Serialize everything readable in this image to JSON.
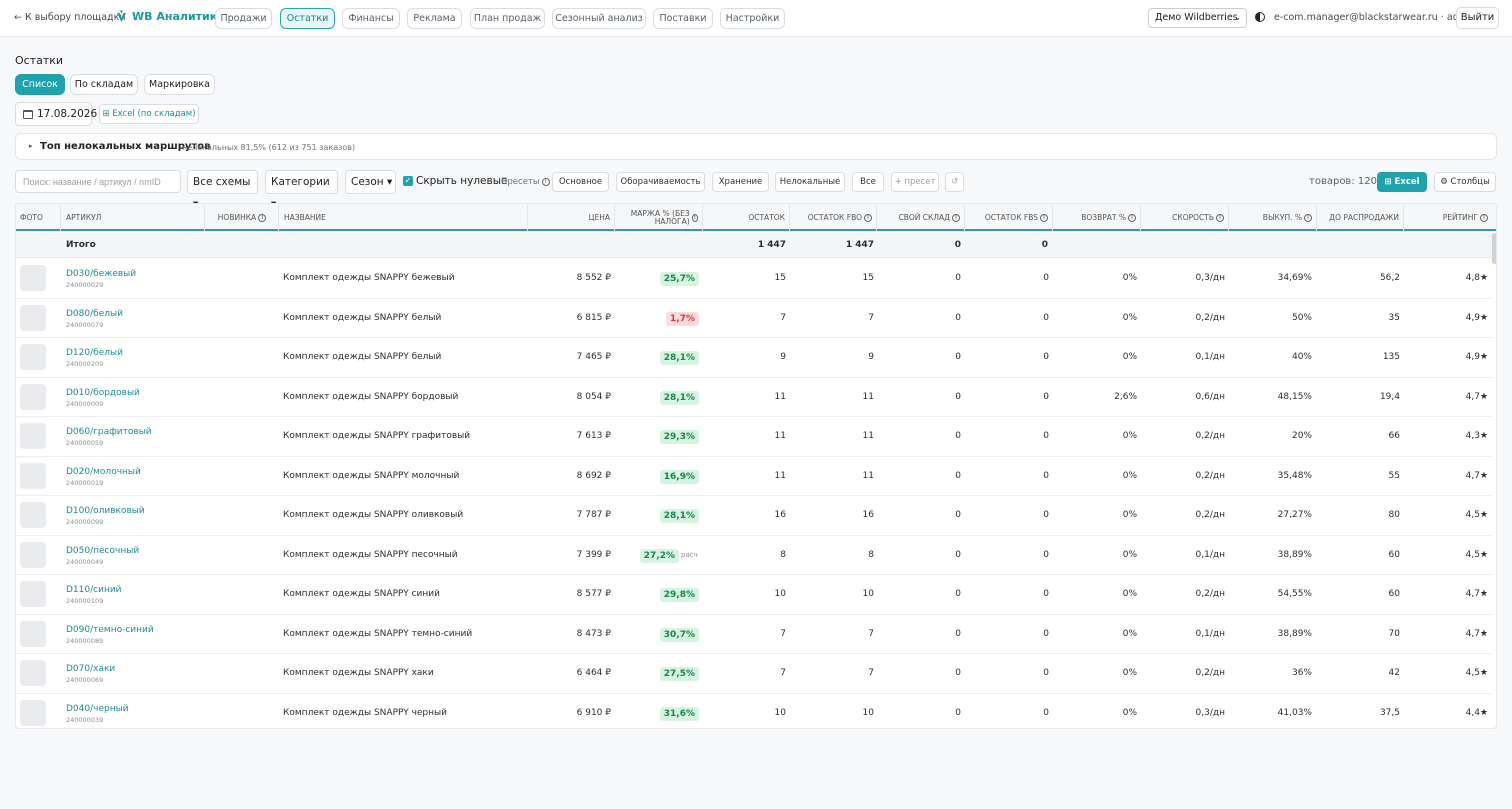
{
  "topbar": {
    "back_label": "← К выбору площадки",
    "logo_text": "WB Аналитика",
    "nav": [
      {
        "label": "Продажи",
        "active": false
      },
      {
        "label": "Остатки",
        "active": true
      },
      {
        "label": "Финансы",
        "active": false
      },
      {
        "label": "Реклама",
        "active": false
      },
      {
        "label": "План продаж",
        "active": false
      },
      {
        "label": "Сезонный анализ",
        "active": false
      },
      {
        "label": "Поставки",
        "active": false
      },
      {
        "label": "Настройки",
        "active": false
      }
    ],
    "account_select": "Демо Wildberries",
    "user": "e-com.manager@blackstarwear.ru · admin",
    "logout": "Выйти"
  },
  "page": {
    "title": "Остатки",
    "view_tabs": [
      {
        "label": "Список",
        "active": true
      },
      {
        "label": "По складам",
        "active": false
      },
      {
        "label": "Маркировка",
        "active": false
      }
    ],
    "date": "17.08.2026",
    "excel_by_warehouse": "⊞ Excel (по складам)"
  },
  "routes": {
    "title": "Топ нелокальных маршрутов",
    "summary": "нелокальных 81,5% (612 из 751 заказов)"
  },
  "filters": {
    "search_placeholder": "Поиск: название / артикул / nmID",
    "schemes": "Все схемы ▾",
    "categories": "Категории ▾",
    "season": "Сезон ▾",
    "hide_zero_checked": true,
    "hide_zero_label": "Скрыть нулевые",
    "presets_label": "Пресеты",
    "presets": [
      "Основное",
      "Оборачиваемость",
      "Хранение",
      "Нелокальные",
      "Все"
    ],
    "add_preset": "+ пресет",
    "reset_icon": "↺",
    "count_label": "товаров: 120",
    "excel_button": "⊞ Excel",
    "columns_button": "⚙ Столбцы"
  },
  "table": {
    "headers": {
      "photo": "Фото",
      "article": "Артикул",
      "novelty": "Новинка",
      "name": "Название",
      "price": "Цена",
      "margin": "Маржа % (без налога)",
      "stock": "Остаток",
      "stock_fbo": "Остаток FBO",
      "own_wh": "Свой склад",
      "stock_fbs": "Остаток FBS",
      "return": "Возврат %",
      "speed": "Скорость",
      "buyout": "Выкуп. %",
      "to_sale": "До распродажи",
      "rating": "Рейтинг"
    },
    "total": {
      "label": "Итого",
      "stock": "1 447",
      "stock_fbo": "1 447",
      "own_wh": "0",
      "stock_fbs": "0"
    },
    "rows": [
      {
        "article": "D030/бежевый",
        "id": "240000029",
        "name": "Комплект одежды SNAPPY бежевый",
        "price": "8 552 ₽",
        "margin": "25,7%",
        "margin_neg": false,
        "margin_note": "",
        "stock": "15",
        "fbo": "15",
        "own": "0",
        "fbs": "0",
        "ret": "0%",
        "speed": "0,3/дн",
        "buyout": "34,69%",
        "to_sale": "56,2",
        "rating": "4,8★"
      },
      {
        "article": "D080/белый",
        "id": "240000079",
        "name": "Комплект одежды SNAPPY белый",
        "price": "6 815 ₽",
        "margin": "1,7%",
        "margin_neg": true,
        "margin_note": "",
        "stock": "7",
        "fbo": "7",
        "own": "0",
        "fbs": "0",
        "ret": "0%",
        "speed": "0,2/дн",
        "buyout": "50%",
        "to_sale": "35",
        "rating": "4,9★"
      },
      {
        "article": "D120/белый",
        "id": "240000209",
        "name": "Комплект одежды SNAPPY белый",
        "price": "7 465 ₽",
        "margin": "28,1%",
        "margin_neg": false,
        "margin_note": "",
        "stock": "9",
        "fbo": "9",
        "own": "0",
        "fbs": "0",
        "ret": "0%",
        "speed": "0,1/дн",
        "buyout": "40%",
        "to_sale": "135",
        "rating": "4,9★"
      },
      {
        "article": "D010/бордовый",
        "id": "240000009",
        "name": "Комплект одежды SNAPPY бордовый",
        "price": "8 054 ₽",
        "margin": "28,1%",
        "margin_neg": false,
        "margin_note": "",
        "stock": "11",
        "fbo": "11",
        "own": "0",
        "fbs": "0",
        "ret": "2,6%",
        "speed": "0,6/дн",
        "buyout": "48,15%",
        "to_sale": "19,4",
        "rating": "4,7★"
      },
      {
        "article": "D060/графитовый",
        "id": "240000059",
        "name": "Комплект одежды SNAPPY графитовый",
        "price": "7 613 ₽",
        "margin": "29,3%",
        "margin_neg": false,
        "margin_note": "",
        "stock": "11",
        "fbo": "11",
        "own": "0",
        "fbs": "0",
        "ret": "0%",
        "speed": "0,2/дн",
        "buyout": "20%",
        "to_sale": "66",
        "rating": "4,3★"
      },
      {
        "article": "D020/молочный",
        "id": "240000019",
        "name": "Комплект одежды SNAPPY молочный",
        "price": "8 692 ₽",
        "margin": "16,9%",
        "margin_neg": false,
        "margin_note": "",
        "stock": "11",
        "fbo": "11",
        "own": "0",
        "fbs": "0",
        "ret": "0%",
        "speed": "0,2/дн",
        "buyout": "35,48%",
        "to_sale": "55",
        "rating": "4,7★"
      },
      {
        "article": "D100/оливковый",
        "id": "240000099",
        "name": "Комплект одежды SNAPPY оливковый",
        "price": "7 787 ₽",
        "margin": "28,1%",
        "margin_neg": false,
        "margin_note": "",
        "stock": "16",
        "fbo": "16",
        "own": "0",
        "fbs": "0",
        "ret": "0%",
        "speed": "0,2/дн",
        "buyout": "27,27%",
        "to_sale": "80",
        "rating": "4,5★"
      },
      {
        "article": "D050/песочный",
        "id": "240000049",
        "name": "Комплект одежды SNAPPY песочный",
        "price": "7 399 ₽",
        "margin": "27,2%",
        "margin_neg": false,
        "margin_note": "расч",
        "stock": "8",
        "fbo": "8",
        "own": "0",
        "fbs": "0",
        "ret": "0%",
        "speed": "0,1/дн",
        "buyout": "38,89%",
        "to_sale": "60",
        "rating": "4,5★"
      },
      {
        "article": "D110/синий",
        "id": "240000109",
        "name": "Комплект одежды SNAPPY синий",
        "price": "8 577 ₽",
        "margin": "29,8%",
        "margin_neg": false,
        "margin_note": "",
        "stock": "10",
        "fbo": "10",
        "own": "0",
        "fbs": "0",
        "ret": "0%",
        "speed": "0,2/дн",
        "buyout": "54,55%",
        "to_sale": "60",
        "rating": "4,7★"
      },
      {
        "article": "D090/темно-синий",
        "id": "240000089",
        "name": "Комплект одежды SNAPPY темно-синий",
        "price": "8 473 ₽",
        "margin": "30,7%",
        "margin_neg": false,
        "margin_note": "",
        "stock": "7",
        "fbo": "7",
        "own": "0",
        "fbs": "0",
        "ret": "0%",
        "speed": "0,1/дн",
        "buyout": "38,89%",
        "to_sale": "70",
        "rating": "4,7★"
      },
      {
        "article": "D070/хаки",
        "id": "240000069",
        "name": "Комплект одежды SNAPPY хаки",
        "price": "6 464 ₽",
        "margin": "27,5%",
        "margin_neg": false,
        "margin_note": "",
        "stock": "7",
        "fbo": "7",
        "own": "0",
        "fbs": "0",
        "ret": "0%",
        "speed": "0,2/дн",
        "buyout": "36%",
        "to_sale": "42",
        "rating": "4,5★"
      },
      {
        "article": "D040/черный",
        "id": "240000039",
        "name": "Комплект одежды SNAPPY черный",
        "price": "6 910 ₽",
        "margin": "31,6%",
        "margin_neg": false,
        "margin_note": "",
        "stock": "10",
        "fbo": "10",
        "own": "0",
        "fbs": "0",
        "ret": "0%",
        "speed": "0,3/дн",
        "buyout": "41,03%",
        "to_sale": "37,5",
        "rating": "4,4★"
      }
    ]
  },
  "colors": {
    "accent": "#1ea3ad",
    "margin_good": "#17884a",
    "margin_bad": "#d83a3a"
  }
}
